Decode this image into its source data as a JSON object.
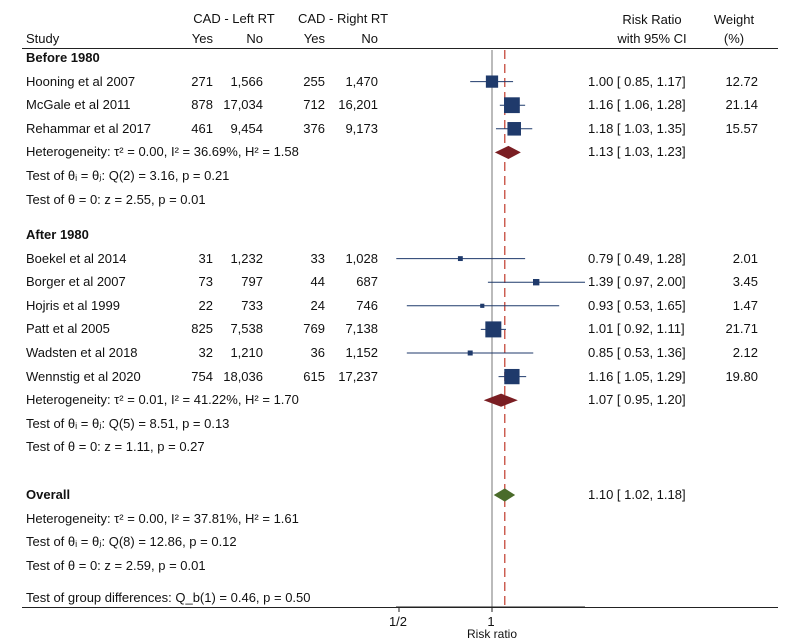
{
  "header": {
    "group1": "CAD - Left RT",
    "group2": "CAD - Right RT",
    "study": "Study",
    "yes1": "Yes",
    "no1": "No",
    "yes2": "Yes",
    "no2": "No",
    "rr1": "Risk Ratio",
    "rr2": "with 95% CI",
    "w1": "Weight",
    "w2": "(%)"
  },
  "colors": {
    "marker": "#1f3a6b",
    "ci": "#1f3a6b",
    "subgroup_diamond": "#7a1e23",
    "overall_diamond": "#4a6b2a",
    "null_line": "#777777",
    "overall_line": "#c0392b"
  },
  "groups": [
    {
      "label": "Before 1980",
      "studies": [
        {
          "name": "Hooning et al 2007",
          "yes1": "271",
          "no1": "1,566",
          "yes2": "255",
          "no2": "1,470",
          "rr": 1.0,
          "lo": 0.85,
          "hi": 1.17,
          "ci_text": "1.00 [ 0.85,  1.17]",
          "weight": 12.72,
          "weight_text": "12.72"
        },
        {
          "name": "McGale et al 2011",
          "yes1": "878",
          "no1": "17,034",
          "yes2": "712",
          "no2": "16,201",
          "rr": 1.16,
          "lo": 1.06,
          "hi": 1.28,
          "ci_text": "1.16 [ 1.06,  1.28]",
          "weight": 21.14,
          "weight_text": "21.14"
        },
        {
          "name": "Rehammar et al 2017",
          "yes1": "461",
          "no1": "9,454",
          "yes2": "376",
          "no2": "9,173",
          "rr": 1.18,
          "lo": 1.03,
          "hi": 1.35,
          "ci_text": "1.18 [ 1.03,  1.35]",
          "weight": 15.57,
          "weight_text": "15.57"
        }
      ],
      "pooled": {
        "rr": 1.13,
        "lo": 1.03,
        "hi": 1.23,
        "ci_text": "1.13 [ 1.03,  1.23]"
      },
      "heterogeneity": "Heterogeneity: τ² = 0.00, I² = 36.69%, H² = 1.58",
      "test1": "Test of θᵢ = θⱼ: Q(2) = 3.16, p = 0.21",
      "test2": "Test of θ = 0: z = 2.55, p = 0.01"
    },
    {
      "label": "After 1980",
      "studies": [
        {
          "name": "Boekel et al 2014",
          "yes1": "31",
          "no1": "1,232",
          "yes2": "33",
          "no2": "1,028",
          "rr": 0.79,
          "lo": 0.49,
          "hi": 1.28,
          "ci_text": "0.79 [ 0.49,  1.28]",
          "weight": 2.01,
          "weight_text": "2.01"
        },
        {
          "name": "Borger et al 2007",
          "yes1": "73",
          "no1": "797",
          "yes2": "44",
          "no2": "687",
          "rr": 1.39,
          "lo": 0.97,
          "hi": 2.0,
          "ci_text": "1.39 [ 0.97,  2.00]",
          "weight": 3.45,
          "weight_text": "3.45"
        },
        {
          "name": "Hojris et al 1999",
          "yes1": "22",
          "no1": "733",
          "yes2": "24",
          "no2": "746",
          "rr": 0.93,
          "lo": 0.53,
          "hi": 1.65,
          "ci_text": "0.93 [ 0.53,  1.65]",
          "weight": 1.47,
          "weight_text": "1.47"
        },
        {
          "name": "Patt et al 2005",
          "yes1": "825",
          "no1": "7,538",
          "yes2": "769",
          "no2": "7,138",
          "rr": 1.01,
          "lo": 0.92,
          "hi": 1.11,
          "ci_text": "1.01 [ 0.92,  1.11]",
          "weight": 21.71,
          "weight_text": "21.71"
        },
        {
          "name": "Wadsten et al 2018",
          "yes1": "32",
          "no1": "1,210",
          "yes2": "36",
          "no2": "1,152",
          "rr": 0.85,
          "lo": 0.53,
          "hi": 1.36,
          "ci_text": "0.85 [ 0.53,  1.36]",
          "weight": 2.12,
          "weight_text": "2.12"
        },
        {
          "name": "Wennstig et al 2020",
          "yes1": "754",
          "no1": "18,036",
          "yes2": "615",
          "no2": "17,237",
          "rr": 1.16,
          "lo": 1.05,
          "hi": 1.29,
          "ci_text": "1.16 [ 1.05,  1.29]",
          "weight": 19.8,
          "weight_text": "19.80"
        }
      ],
      "pooled": {
        "rr": 1.07,
        "lo": 0.95,
        "hi": 1.2,
        "ci_text": "1.07 [ 0.95,  1.20]"
      },
      "heterogeneity": "Heterogeneity: τ² = 0.01, I² = 41.22%, H² = 1.70",
      "test1": "Test of θᵢ = θⱼ: Q(5) = 8.51, p = 0.13",
      "test2": "Test of θ = 0: z = 1.11, p = 0.27"
    }
  ],
  "overall": {
    "label": "Overall",
    "rr": 1.1,
    "lo": 1.02,
    "hi": 1.18,
    "ci_text": "1.10 [ 1.02,  1.18]",
    "heterogeneity": "Heterogeneity: τ² = 0.00, I² = 37.81%, H² = 1.61",
    "test1": "Test of θᵢ = θⱼ: Q(8) = 12.86, p = 0.12",
    "test2": "Test of θ = 0: z = 2.59, p = 0.01",
    "group_diff": "Test of group differences: Q_b(1) = 0.46, p = 0.50"
  },
  "axis": {
    "ticks": [
      {
        "value": 0.5,
        "label": "1/2"
      },
      {
        "value": 1,
        "label": "1"
      }
    ],
    "xlabel": "Risk ratio",
    "scale": "log",
    "xlim": [
      0.45,
      2.1
    ]
  },
  "chart_data": {
    "type": "scatter",
    "title": "",
    "xlabel": "Risk ratio",
    "ylabel": "",
    "xscale": "log",
    "xlim": [
      0.45,
      2.1
    ],
    "series": [
      {
        "name": "Before 1980",
        "x": [
          1.0,
          1.16,
          1.18
        ],
        "lo": [
          0.85,
          1.06,
          1.03
        ],
        "hi": [
          1.17,
          1.28,
          1.35
        ]
      },
      {
        "name": "After 1980",
        "x": [
          0.79,
          1.39,
          0.93,
          1.01,
          0.85,
          1.16
        ],
        "lo": [
          0.49,
          0.97,
          0.53,
          0.92,
          0.53,
          1.05
        ],
        "hi": [
          1.28,
          2.0,
          1.65,
          1.11,
          1.36,
          1.29
        ]
      }
    ],
    "pooled": [
      {
        "name": "Before 1980",
        "x": 1.13,
        "lo": 1.03,
        "hi": 1.23
      },
      {
        "name": "After 1980",
        "x": 1.07,
        "lo": 0.95,
        "hi": 1.2
      },
      {
        "name": "Overall",
        "x": 1.1,
        "lo": 1.02,
        "hi": 1.18
      }
    ]
  }
}
